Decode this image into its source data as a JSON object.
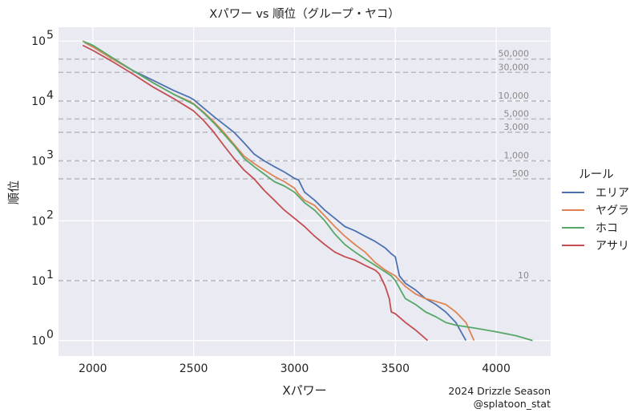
{
  "chart_data": {
    "type": "line",
    "title": "Xパワー vs 順位（グループ・ヤコ）",
    "xlabel": "Xパワー",
    "ylabel": "順位",
    "xlim": [
      1830,
      4270
    ],
    "ylim": [
      0.55,
      170000
    ],
    "y_scale": "log",
    "x_ticks": [
      2000,
      2500,
      3000,
      3500,
      4000
    ],
    "y_ticks": [
      {
        "value": 1,
        "base": "10",
        "exp": "0"
      },
      {
        "value": 10,
        "base": "10",
        "exp": "1"
      },
      {
        "value": 100,
        "base": "10",
        "exp": "2"
      },
      {
        "value": 1000,
        "base": "10",
        "exp": "3"
      },
      {
        "value": 10000,
        "base": "10",
        "exp": "4"
      },
      {
        "value": 100000,
        "base": "10",
        "exp": "5"
      }
    ],
    "grid": true,
    "legend": {
      "title": "ルール",
      "position": "right"
    },
    "reference_lines": [
      {
        "value": 50000,
        "label": "50,000"
      },
      {
        "value": 30000,
        "label": "30,000"
      },
      {
        "value": 10000,
        "label": "10,000"
      },
      {
        "value": 5000,
        "label": "5,000"
      },
      {
        "value": 3000,
        "label": "3,000"
      },
      {
        "value": 1000,
        "label": "1,000"
      },
      {
        "value": 500,
        "label": "500"
      },
      {
        "value": 10,
        "label": "10"
      }
    ],
    "series": [
      {
        "name": "エリア",
        "color": "#4c72b0",
        "points": [
          [
            1960,
            95000
          ],
          [
            2000,
            80000
          ],
          [
            2100,
            50000
          ],
          [
            2200,
            32000
          ],
          [
            2300,
            22000
          ],
          [
            2400,
            15000
          ],
          [
            2480,
            11500
          ],
          [
            2500,
            10500
          ],
          [
            2550,
            7600
          ],
          [
            2600,
            5500
          ],
          [
            2700,
            3000
          ],
          [
            2750,
            2000
          ],
          [
            2800,
            1300
          ],
          [
            2850,
            1000
          ],
          [
            2900,
            800
          ],
          [
            2950,
            650
          ],
          [
            3000,
            510
          ],
          [
            3020,
            480
          ],
          [
            3050,
            300
          ],
          [
            3100,
            220
          ],
          [
            3150,
            150
          ],
          [
            3200,
            110
          ],
          [
            3250,
            80
          ],
          [
            3300,
            68
          ],
          [
            3350,
            55
          ],
          [
            3400,
            45
          ],
          [
            3450,
            35
          ],
          [
            3480,
            28
          ],
          [
            3500,
            25
          ],
          [
            3520,
            12
          ],
          [
            3550,
            9
          ],
          [
            3600,
            7
          ],
          [
            3650,
            5
          ],
          [
            3700,
            4
          ],
          [
            3750,
            3
          ],
          [
            3800,
            2
          ],
          [
            3850,
            1
          ]
        ]
      },
      {
        "name": "ヤグラ",
        "color": "#dd8452",
        "points": [
          [
            1960,
            95000
          ],
          [
            2000,
            80000
          ],
          [
            2100,
            50000
          ],
          [
            2200,
            32000
          ],
          [
            2300,
            20000
          ],
          [
            2400,
            13000
          ],
          [
            2480,
            9800
          ],
          [
            2500,
            9000
          ],
          [
            2550,
            6500
          ],
          [
            2600,
            4500
          ],
          [
            2650,
            3000
          ],
          [
            2700,
            1900
          ],
          [
            2750,
            1200
          ],
          [
            2800,
            900
          ],
          [
            2850,
            700
          ],
          [
            2900,
            550
          ],
          [
            2950,
            450
          ],
          [
            3000,
            350
          ],
          [
            3020,
            280
          ],
          [
            3050,
            220
          ],
          [
            3100,
            180
          ],
          [
            3150,
            120
          ],
          [
            3200,
            80
          ],
          [
            3250,
            55
          ],
          [
            3300,
            40
          ],
          [
            3350,
            30
          ],
          [
            3400,
            20
          ],
          [
            3450,
            15
          ],
          [
            3500,
            12
          ],
          [
            3550,
            8
          ],
          [
            3600,
            6
          ],
          [
            3650,
            5
          ],
          [
            3700,
            4.5
          ],
          [
            3750,
            4
          ],
          [
            3800,
            3
          ],
          [
            3850,
            2
          ],
          [
            3890,
            1
          ]
        ]
      },
      {
        "name": "ホコ",
        "color": "#55a868",
        "points": [
          [
            1950,
            100000
          ],
          [
            2000,
            85000
          ],
          [
            2100,
            52000
          ],
          [
            2200,
            32000
          ],
          [
            2300,
            20000
          ],
          [
            2400,
            13000
          ],
          [
            2480,
            9500
          ],
          [
            2500,
            8800
          ],
          [
            2550,
            6300
          ],
          [
            2600,
            4300
          ],
          [
            2650,
            2800
          ],
          [
            2700,
            1800
          ],
          [
            2750,
            1100
          ],
          [
            2800,
            800
          ],
          [
            2850,
            600
          ],
          [
            2900,
            450
          ],
          [
            2950,
            380
          ],
          [
            3000,
            300
          ],
          [
            3050,
            200
          ],
          [
            3100,
            150
          ],
          [
            3150,
            100
          ],
          [
            3200,
            60
          ],
          [
            3250,
            40
          ],
          [
            3300,
            30
          ],
          [
            3350,
            23
          ],
          [
            3400,
            18
          ],
          [
            3450,
            14
          ],
          [
            3480,
            12
          ],
          [
            3500,
            10
          ],
          [
            3550,
            5
          ],
          [
            3600,
            4
          ],
          [
            3650,
            3
          ],
          [
            3700,
            2.5
          ],
          [
            3750,
            2
          ],
          [
            3800,
            1.8
          ],
          [
            3900,
            1.6
          ],
          [
            4000,
            1.4
          ],
          [
            4100,
            1.2
          ],
          [
            4180,
            1
          ]
        ]
      },
      {
        "name": "アサリ",
        "color": "#c44e52",
        "points": [
          [
            1950,
            85000
          ],
          [
            2000,
            70000
          ],
          [
            2100,
            45000
          ],
          [
            2200,
            28000
          ],
          [
            2300,
            17000
          ],
          [
            2400,
            11000
          ],
          [
            2480,
            7500
          ],
          [
            2500,
            6800
          ],
          [
            2550,
            4700
          ],
          [
            2600,
            3000
          ],
          [
            2650,
            1800
          ],
          [
            2700,
            1100
          ],
          [
            2750,
            700
          ],
          [
            2800,
            500
          ],
          [
            2850,
            320
          ],
          [
            2900,
            220
          ],
          [
            2950,
            150
          ],
          [
            3000,
            110
          ],
          [
            3050,
            80
          ],
          [
            3100,
            55
          ],
          [
            3150,
            40
          ],
          [
            3200,
            30
          ],
          [
            3250,
            25
          ],
          [
            3300,
            22
          ],
          [
            3350,
            18
          ],
          [
            3400,
            15
          ],
          [
            3420,
            13
          ],
          [
            3450,
            8
          ],
          [
            3470,
            5
          ],
          [
            3480,
            3
          ],
          [
            3500,
            2.8
          ],
          [
            3550,
            2
          ],
          [
            3600,
            1.5
          ],
          [
            3660,
            1
          ]
        ]
      }
    ]
  },
  "credit": {
    "line1": "2024 Drizzle Season",
    "line2": "@splatoon_stat"
  }
}
